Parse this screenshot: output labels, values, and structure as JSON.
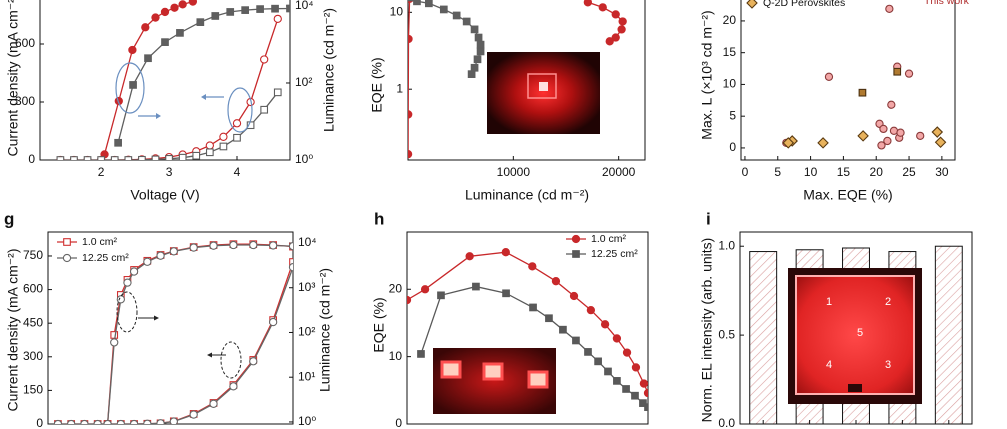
{
  "chart_data": [
    {
      "type": "line",
      "xlabel": "Voltage (V)",
      "ylabel": "Current density (mA cm⁻²)",
      "y2label": "Luminance (cd m⁻²)",
      "xlim": [
        1.1,
        4.78
      ],
      "xticks": [
        2,
        3,
        4
      ],
      "ylim": [
        0,
        900
      ],
      "yticks": [
        0,
        300,
        600
      ],
      "y2lim": [
        1,
        33000
      ],
      "y2log": true,
      "y2ticks": [
        {
          "value": 1,
          "label": "10⁰"
        },
        {
          "value": 100,
          "label": "10²"
        },
        {
          "value": 10000,
          "label": "10⁴"
        }
      ],
      "series": [
        {
          "color": "#c8282a",
          "marker": "circle",
          "filled": true,
          "axis": "y2",
          "x": [
            2.05,
            2.26,
            2.46,
            2.65,
            2.8,
            2.94,
            3.08,
            3.2,
            3.35
          ],
          "values": [
            1.4,
            34,
            720,
            2800,
            5000,
            7000,
            9000,
            11000,
            13000
          ]
        },
        {
          "color": "#5f5f5f",
          "marker": "square",
          "filled": true,
          "axis": "y2",
          "x": [
            2.25,
            2.47,
            2.69,
            2.94,
            3.16,
            3.46,
            3.68,
            3.9,
            4.12,
            4.34,
            4.56,
            4.78
          ],
          "values": [
            2.8,
            89,
            440,
            1150,
            2000,
            3800,
            5500,
            7000,
            7800,
            8300,
            8500,
            8600
          ]
        },
        {
          "color": "#c8282a",
          "marker": "circle",
          "filled": false,
          "x": [
            1.4,
            1.6,
            1.8,
            2.0,
            2.2,
            2.4,
            2.6,
            2.8,
            3.0,
            3.2,
            3.4,
            3.6,
            3.8,
            4.0,
            4.2,
            4.4,
            4.6
          ],
          "values": [
            0,
            0,
            0,
            0,
            0,
            1,
            3,
            8,
            15,
            28,
            45,
            75,
            120,
            190,
            300,
            520,
            730
          ]
        },
        {
          "color": "#5f5f5f",
          "marker": "square",
          "filled": false,
          "x": [
            1.4,
            1.6,
            1.8,
            2.0,
            2.2,
            2.4,
            2.6,
            2.8,
            3.0,
            3.2,
            3.4,
            3.6,
            3.8,
            4.0,
            4.2,
            4.4,
            4.6
          ],
          "values": [
            0,
            0,
            0,
            0,
            0,
            0,
            1,
            3,
            6,
            12,
            22,
            40,
            70,
            115,
            180,
            260,
            350
          ]
        }
      ]
    },
    {
      "type": "line",
      "xlabel": "Luminance (cd m⁻²)",
      "ylabel": "EQE (%)",
      "xlim": [
        0,
        22500
      ],
      "xticks": [
        10000,
        20000
      ],
      "ylim": [
        0.12,
        22
      ],
      "ylog": true,
      "yticks": [
        1,
        10
      ],
      "series": [
        {
          "color": "#c8282a",
          "marker": "circle",
          "filled": true,
          "x": [
            10,
            20,
            50,
            150,
            1000,
            5000,
            12000,
            16000,
            17075,
            18490,
            19720,
            20380,
            20280,
            19720,
            19150
          ],
          "values": [
            0.143,
            0.47,
            4.5,
            15,
            24,
            25,
            25,
            20,
            13.5,
            11.6,
            9.4,
            7.6,
            6.0,
            4.7,
            4.2
          ]
        },
        {
          "color": "#5f5f5f",
          "marker": "square",
          "filled": true,
          "x": [
            190,
            850,
            1980,
            3400,
            4620,
            5570,
            6320,
            6700,
            6890,
            6890,
            6600,
            6320,
            6040
          ],
          "values": [
            15.6,
            13.9,
            13.1,
            10.9,
            9.1,
            7.6,
            6.0,
            4.7,
            3.8,
            3.1,
            2.45,
            1.9,
            1.57
          ]
        }
      ]
    },
    {
      "type": "scatter",
      "xlabel": "Max. EQE (%)",
      "ylabel": "Max. L (×10³ cd m⁻²)",
      "xlim": [
        -0.6,
        32
      ],
      "xticks": [
        0,
        5,
        10,
        15,
        20,
        25,
        30
      ],
      "ylim": [
        -1.9,
        25.5
      ],
      "yticks": [
        0,
        5,
        10,
        15,
        20
      ],
      "series": [
        {
          "color": "#f2a7a7",
          "edgecolor": "#8a3a3a",
          "marker": "circle",
          "x": [
            6.3,
            20.5,
            21.1,
            21.7,
            20.8,
            22.7,
            23.5,
            23.7,
            26.7,
            22.3,
            25.0,
            23.2,
            22.0,
            12.8
          ],
          "values": [
            0.8,
            3.8,
            3.0,
            1.1,
            0.4,
            2.7,
            1.6,
            2.4,
            1.9,
            6.8,
            11.7,
            12.8,
            21.9,
            11.2
          ]
        },
        {
          "name": "Q-2D Perovskites",
          "color": "#e8b25c",
          "edgecolor": "#5a3a10",
          "marker": "diamond",
          "x": [
            7.2,
            6.6,
            11.9,
            18.0,
            29.3,
            29.8
          ],
          "values": [
            1.1,
            0.8,
            0.8,
            1.9,
            2.5,
            0.9
          ]
        },
        {
          "name": "This work",
          "color": "#b07a30",
          "edgecolor": "#4a3010",
          "marker": "square",
          "x": [
            17.9,
            23.2
          ],
          "values": [
            8.7,
            12.0
          ]
        }
      ]
    },
    {
      "type": "line",
      "panel": "g",
      "ylabel": "Current density (mA cm⁻²)",
      "y2label": "Luminance (cd m⁻²)",
      "xlim": [
        1.1,
        4.8
      ],
      "ylim": [
        0,
        857
      ],
      "yticks": [
        0,
        150,
        300,
        450,
        600,
        750
      ],
      "y2lim": [
        0.9,
        17600
      ],
      "y2log": true,
      "y2ticks": [
        {
          "value": 1,
          "label": "10⁰"
        },
        {
          "value": 10,
          "label": "10¹"
        },
        {
          "value": 100,
          "label": "10²"
        },
        {
          "value": 1000,
          "label": "10³"
        },
        {
          "value": 10000,
          "label": "10⁴"
        }
      ],
      "series": [
        {
          "name": "1.0 cm²",
          "color": "#d03030",
          "marker": "square",
          "filled": false,
          "x": [
            1.25,
            1.45,
            1.65,
            1.85,
            2.0,
            2.2,
            2.4,
            2.6,
            2.8,
            3.0,
            3.3,
            3.6,
            3.9,
            4.2,
            4.5,
            4.8
          ],
          "values": [
            0,
            0,
            0,
            0,
            0,
            0,
            0,
            1,
            3,
            12,
            45,
            94,
            174,
            286,
            464,
            723
          ]
        },
        {
          "name": "12.25 cm²",
          "color": "#666666",
          "marker": "circle",
          "filled": false,
          "x": [
            1.25,
            1.45,
            1.65,
            1.85,
            2.0,
            2.2,
            2.4,
            2.6,
            2.8,
            3.0,
            3.3,
            3.6,
            3.9,
            4.2,
            4.5,
            4.8
          ],
          "values": [
            0,
            0,
            0,
            0,
            0,
            0,
            0,
            1,
            3,
            11,
            42,
            90,
            168,
            280,
            455,
            700
          ]
        },
        {
          "color": "#d03030",
          "marker": "square",
          "filled": false,
          "axis": "y2",
          "x": [
            2.0,
            2.1,
            2.2,
            2.3,
            2.4,
            2.6,
            2.8,
            3.0,
            3.3,
            3.6,
            3.9,
            4.2,
            4.5,
            4.8
          ],
          "values": [
            0.9,
            88,
            690,
            1500,
            2500,
            4000,
            5400,
            6600,
            8100,
            9000,
            9400,
            9400,
            9000,
            8300
          ]
        },
        {
          "color": "#666666",
          "marker": "circle",
          "filled": false,
          "axis": "y2",
          "x": [
            2.0,
            2.1,
            2.2,
            2.3,
            2.4,
            2.6,
            2.8,
            3.0,
            3.3,
            3.6,
            3.9,
            4.2,
            4.5,
            4.8
          ],
          "values": [
            0.9,
            60,
            550,
            1300,
            2300,
            3800,
            5200,
            6500,
            7900,
            8700,
            9000,
            9000,
            8800,
            8500
          ]
        }
      ]
    },
    {
      "type": "line",
      "panel": "h",
      "ylabel": "EQE (%)",
      "xlim": [
        0,
        100
      ],
      "ylim": [
        0,
        28.5
      ],
      "yticks": [
        0,
        10,
        20
      ],
      "series": [
        {
          "name": "1.0 cm²",
          "color": "#c8282a",
          "marker": "circle",
          "filled": true,
          "x": [
            0,
            7.5,
            26,
            41,
            52,
            61.8,
            69.3,
            76.3,
            82.2,
            87.1,
            91.3,
            95,
            98.3,
            100
          ],
          "values": [
            18.4,
            20.0,
            24.9,
            25.5,
            23.4,
            21.2,
            19.0,
            16.9,
            14.8,
            12.7,
            10.6,
            8.4,
            6.0,
            4.6
          ]
        },
        {
          "name": "12.25 cm²",
          "color": "#595959",
          "marker": "square",
          "filled": true,
          "x": [
            5.8,
            14.1,
            28.6,
            41.1,
            52.3,
            58.9,
            64.7,
            70.1,
            75.1,
            79.3,
            83.4,
            87.1,
            90.9,
            94.6,
            97.9,
            100
          ],
          "values": [
            10.4,
            19.1,
            20.4,
            19.4,
            17.3,
            15.7,
            14.0,
            12.4,
            10.7,
            9.3,
            7.8,
            6.4,
            5.2,
            4.2,
            3.1,
            2.5
          ]
        }
      ]
    },
    {
      "type": "bar",
      "panel": "i",
      "ylabel": "Norm. EL intensity (arb. units)",
      "categories": [
        null,
        null,
        null,
        null,
        null
      ],
      "values": [
        0.97,
        0.98,
        0.99,
        0.97,
        1.0
      ],
      "ylim": [
        0,
        1.08
      ],
      "yticks": [
        {
          "value": 0,
          "label": "0.0"
        },
        {
          "value": 0.5,
          "label": "0.5"
        },
        {
          "value": 1,
          "label": "1.0"
        }
      ],
      "annotations": [
        "1",
        "2",
        "5",
        "4",
        "3"
      ]
    }
  ]
}
